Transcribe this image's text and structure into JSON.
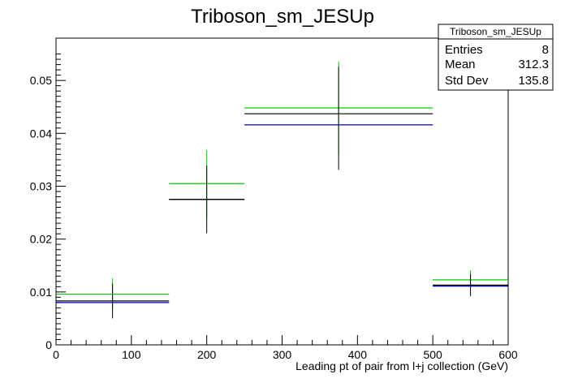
{
  "chart_data": {
    "type": "histogram",
    "title": "Triboson_sm_JESUp",
    "xlabel": "Leading pt of pair from l+j collection (GeV)",
    "ylabel": "",
    "xlim": [
      0,
      600
    ],
    "ylim": [
      0,
      0.058
    ],
    "x_ticks": [
      0,
      100,
      200,
      300,
      400,
      500,
      600
    ],
    "x_tick_labels": [
      "0",
      "100",
      "200",
      "300",
      "400",
      "500",
      "600"
    ],
    "y_ticks": [
      0,
      0.01,
      0.02,
      0.03,
      0.04,
      0.05
    ],
    "y_tick_labels": [
      "0",
      "0.01",
      "0.02",
      "0.03",
      "0.04",
      "0.05"
    ],
    "grid": false,
    "stats_box": {
      "title": "Triboson_sm_JESUp",
      "rows": [
        {
          "label": "Entries",
          "value": "8"
        },
        {
          "label": "Mean",
          "value": "312.3"
        },
        {
          "label": "Std Dev",
          "value": "135.8"
        }
      ]
    },
    "series": [
      {
        "color": "#00cc00",
        "bins": [
          {
            "xlow": 0,
            "xhigh": 150,
            "y": 0.0096
          },
          {
            "xlow": 150,
            "xhigh": 250,
            "y": 0.0305
          },
          {
            "xlow": 250,
            "xhigh": 500,
            "y": 0.0448
          },
          {
            "xlow": 500,
            "xhigh": 600,
            "y": 0.0123
          }
        ],
        "error_bars": [
          {
            "x": 75,
            "low": 0.0066,
            "high": 0.0126
          },
          {
            "x": 200,
            "low": 0.024,
            "high": 0.0368
          },
          {
            "x": 375,
            "low": 0.036,
            "high": 0.0536
          },
          {
            "x": 550,
            "low": 0.0105,
            "high": 0.0141
          }
        ]
      },
      {
        "color": "#0000cc",
        "bins": [
          {
            "xlow": 0,
            "xhigh": 150,
            "y": 0.008
          },
          {
            "xlow": 150,
            "xhigh": 250,
            "y": 0.0275
          },
          {
            "xlow": 250,
            "xhigh": 500,
            "y": 0.0416
          },
          {
            "xlow": 500,
            "xhigh": 600,
            "y": 0.0111
          }
        ],
        "error_bars": []
      },
      {
        "color": "#000000",
        "bins": [
          {
            "xlow": 0,
            "xhigh": 150,
            "y": 0.0083
          },
          {
            "xlow": 150,
            "xhigh": 250,
            "y": 0.0275
          },
          {
            "xlow": 250,
            "xhigh": 500,
            "y": 0.0437
          },
          {
            "xlow": 500,
            "xhigh": 600,
            "y": 0.0113
          }
        ],
        "error_bars": [
          {
            "x": 75,
            "low": 0.005,
            "high": 0.0116
          },
          {
            "x": 200,
            "low": 0.0211,
            "high": 0.0339
          },
          {
            "x": 375,
            "low": 0.0331,
            "high": 0.0526
          },
          {
            "x": 550,
            "low": 0.0092,
            "high": 0.0134
          }
        ]
      }
    ]
  }
}
